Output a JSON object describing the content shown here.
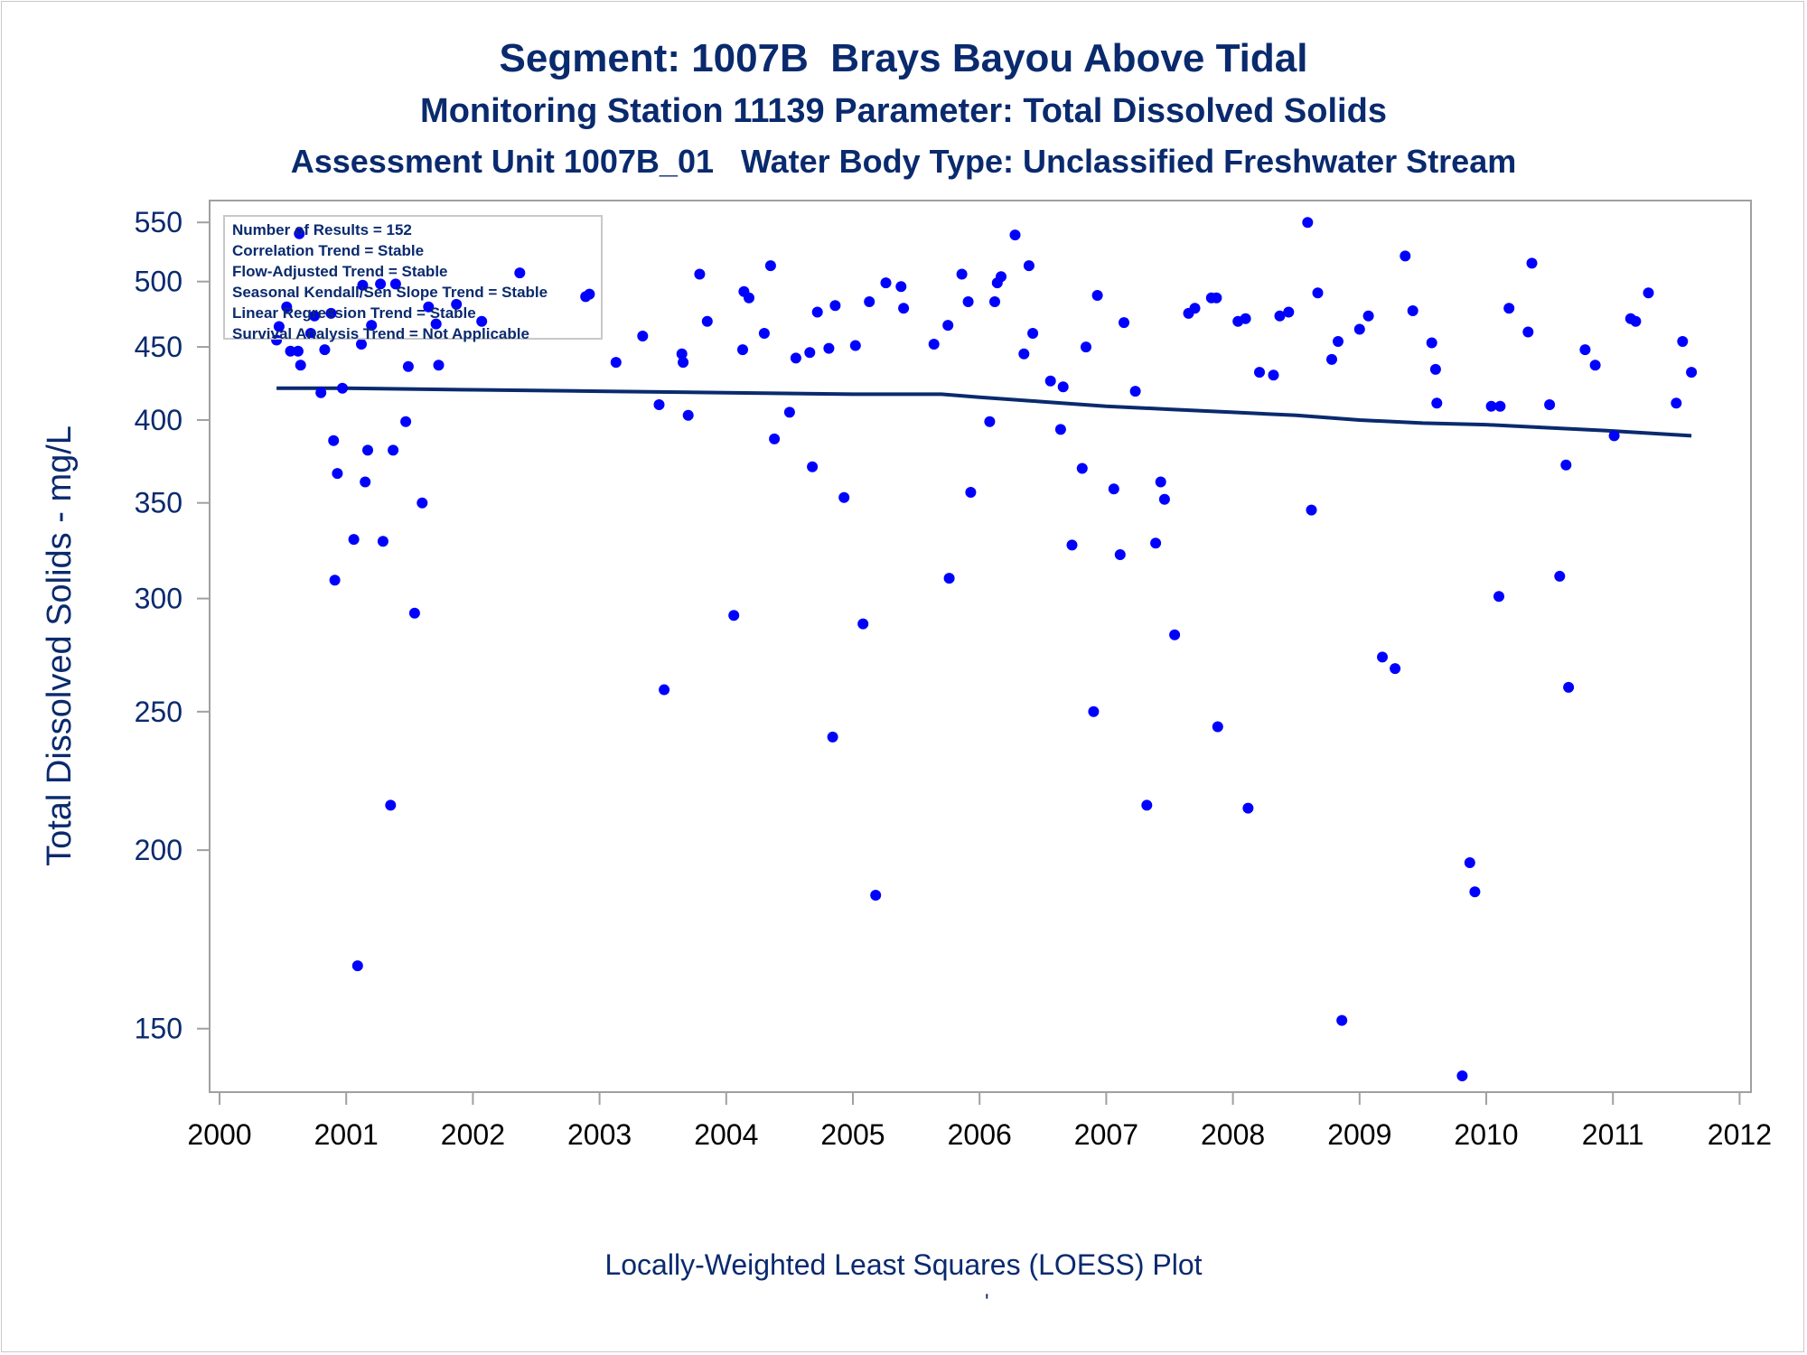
{
  "colors": {
    "title": "#0a2a6e",
    "marker": "#0000ff",
    "loess": "#0a2a6e",
    "frame": "#a0a0a0"
  },
  "chart_data": {
    "type": "scatter",
    "title": "Segment: 1007B  Brays Bayou Above Tidal",
    "subtitle": "Monitoring Station 11139 Parameter: Total Dissolved Solids",
    "subtitle2": "Assessment Unit 1007B_01   Water Body Type: Unclassified Freshwater Stream",
    "xlabel": "",
    "ylabel": "Total Dissolved Solids - mg/L",
    "footnote": "Locally-Weighted Least Squares (LOESS) Plot",
    "footer_mark": "'",
    "y_scale": "log",
    "xlim": [
      2000,
      2012
    ],
    "ylim": [
      137,
      555
    ],
    "x_ticks": [
      "2000",
      "2001",
      "2002",
      "2003",
      "2004",
      "2005",
      "2006",
      "2007",
      "2008",
      "2009",
      "2010",
      "2011",
      "2012"
    ],
    "y_ticks": [
      "150",
      "200",
      "250",
      "300",
      "350",
      "400",
      "450",
      "500",
      "550"
    ],
    "grid": false,
    "stats": [
      "Number of Results = 152",
      "Correlation Trend = Stable",
      "Flow-Adjusted Trend = Stable",
      "Seasonal Kendall/Sen Slope Trend = Stable",
      "Linear Regression Trend = Stable",
      "Survival Analysis Trend = Not Applicable"
    ],
    "series": [
      {
        "marker": "circle",
        "points": [
          [
            2000.45,
            455
          ],
          [
            2000.47,
            465
          ],
          [
            2000.53,
            480
          ],
          [
            2000.56,
            447
          ],
          [
            2000.62,
            447
          ],
          [
            2000.63,
            540
          ],
          [
            2000.64,
            437
          ],
          [
            2000.72,
            460
          ],
          [
            2000.75,
            473
          ],
          [
            2000.8,
            418
          ],
          [
            2000.83,
            448
          ],
          [
            2000.9,
            387
          ],
          [
            2000.91,
            309
          ],
          [
            2000.93,
            367
          ],
          [
            2000.97,
            421
          ],
          [
            2001.06,
            330
          ],
          [
            2001.09,
            166
          ],
          [
            2001.12,
            452
          ],
          [
            2001.13,
            497
          ],
          [
            2001.15,
            362
          ],
          [
            2001.17,
            381
          ],
          [
            2001.2,
            466
          ],
          [
            2001.27,
            498
          ],
          [
            2001.29,
            329
          ],
          [
            2001.35,
            215
          ],
          [
            2001.37,
            381
          ],
          [
            2001.39,
            498
          ],
          [
            2001.47,
            399
          ],
          [
            2001.49,
            436
          ],
          [
            2001.54,
            293
          ],
          [
            2001.6,
            350
          ],
          [
            2001.65,
            480
          ],
          [
            2001.71,
            467
          ],
          [
            2001.73,
            437
          ],
          [
            2001.87,
            482
          ],
          [
            2002.07,
            469
          ],
          [
            2002.37,
            507
          ],
          [
            2002.89,
            488
          ],
          [
            2003.13,
            439
          ],
          [
            2003.34,
            458
          ],
          [
            2003.47,
            410
          ],
          [
            2003.51,
            259
          ],
          [
            2003.65,
            445
          ],
          [
            2003.66,
            439
          ],
          [
            2003.7,
            403
          ],
          [
            2003.79,
            506
          ],
          [
            2003.85,
            469
          ],
          [
            2004.06,
            292
          ],
          [
            2004.13,
            448
          ],
          [
            2004.14,
            492
          ],
          [
            2004.18,
            487
          ],
          [
            2004.3,
            460
          ],
          [
            2004.35,
            513
          ],
          [
            2004.38,
            388
          ],
          [
            2004.5,
            405
          ],
          [
            2004.55,
            442
          ],
          [
            2004.66,
            446
          ],
          [
            2004.68,
            371
          ],
          [
            2004.72,
            476
          ],
          [
            2004.81,
            449
          ],
          [
            2004.84,
            240
          ],
          [
            2004.86,
            481
          ],
          [
            2004.93,
            353
          ],
          [
            2005.02,
            451
          ],
          [
            2005.08,
            288
          ],
          [
            2005.13,
            484
          ],
          [
            2005.18,
            186
          ],
          [
            2005.26,
            499
          ],
          [
            2005.38,
            496
          ],
          [
            2005.4,
            479
          ],
          [
            2005.64,
            452
          ],
          [
            2005.75,
            466
          ],
          [
            2005.76,
            310
          ],
          [
            2005.86,
            506
          ],
          [
            2005.91,
            484
          ],
          [
            2005.93,
            356
          ],
          [
            2006.08,
            399
          ],
          [
            2006.12,
            484
          ],
          [
            2006.14,
            499
          ],
          [
            2006.17,
            504
          ],
          [
            2006.28,
            539
          ],
          [
            2006.35,
            445
          ],
          [
            2006.39,
            513
          ],
          [
            2006.42,
            460
          ],
          [
            2006.56,
            426
          ],
          [
            2006.64,
            394
          ],
          [
            2006.66,
            422
          ],
          [
            2006.73,
            327
          ],
          [
            2006.81,
            370
          ],
          [
            2006.84,
            450
          ],
          [
            2006.9,
            250
          ],
          [
            2006.93,
            489
          ],
          [
            2007.06,
            358
          ],
          [
            2007.11,
            322
          ],
          [
            2007.14,
            468
          ],
          [
            2007.23,
            419
          ],
          [
            2007.32,
            215
          ],
          [
            2007.39,
            328
          ],
          [
            2007.43,
            362
          ],
          [
            2007.46,
            352
          ],
          [
            2007.54,
            283
          ],
          [
            2007.65,
            475
          ],
          [
            2007.7,
            479
          ],
          [
            2007.83,
            487
          ],
          [
            2007.87,
            487
          ],
          [
            2007.88,
            244
          ],
          [
            2008.04,
            469
          ],
          [
            2008.1,
            471
          ],
          [
            2008.12,
            214
          ],
          [
            2008.21,
            432
          ],
          [
            2008.32,
            430
          ],
          [
            2008.37,
            473
          ],
          [
            2008.44,
            476
          ],
          [
            2008.59,
            550
          ],
          [
            2008.62,
            346
          ],
          [
            2008.67,
            491
          ],
          [
            2008.78,
            441
          ],
          [
            2008.83,
            454
          ],
          [
            2008.86,
            152
          ],
          [
            2009.0,
            463
          ],
          [
            2009.07,
            473
          ],
          [
            2009.18,
            273
          ],
          [
            2009.28,
            268
          ],
          [
            2009.36,
            521
          ],
          [
            2009.42,
            477
          ],
          [
            2009.57,
            453
          ],
          [
            2009.6,
            434
          ],
          [
            2009.61,
            411
          ],
          [
            2009.81,
            139
          ],
          [
            2009.87,
            196
          ],
          [
            2009.91,
            187
          ],
          [
            2010.04,
            409
          ],
          [
            2010.1,
            301
          ],
          [
            2010.11,
            409
          ],
          [
            2010.18,
            479
          ],
          [
            2010.33,
            461
          ],
          [
            2010.36,
            515
          ],
          [
            2010.5,
            410
          ],
          [
            2010.58,
            311
          ],
          [
            2010.63,
            372
          ],
          [
            2010.65,
            260
          ],
          [
            2010.78,
            448
          ],
          [
            2010.86,
            437
          ],
          [
            2011.01,
            390
          ],
          [
            2011.14,
            471
          ],
          [
            2011.18,
            469
          ],
          [
            2011.28,
            491
          ],
          [
            2011.5,
            411
          ],
          [
            2011.55,
            454
          ],
          [
            2011.62,
            432
          ],
          [
            2000.88,
            475
          ],
          [
            2002.92,
            490
          ]
        ]
      },
      {
        "type": "line",
        "points": [
          [
            2000.45,
            421
          ],
          [
            2001.0,
            421
          ],
          [
            2002.0,
            420
          ],
          [
            2003.0,
            419
          ],
          [
            2004.0,
            418
          ],
          [
            2005.0,
            417
          ],
          [
            2005.7,
            417
          ],
          [
            2006.0,
            415
          ],
          [
            2006.5,
            412
          ],
          [
            2007.0,
            409
          ],
          [
            2007.5,
            407
          ],
          [
            2008.0,
            405
          ],
          [
            2008.5,
            403
          ],
          [
            2009.0,
            400
          ],
          [
            2009.5,
            398
          ],
          [
            2010.0,
            397
          ],
          [
            2010.5,
            395
          ],
          [
            2011.0,
            393
          ],
          [
            2011.62,
            390
          ]
        ]
      }
    ]
  }
}
